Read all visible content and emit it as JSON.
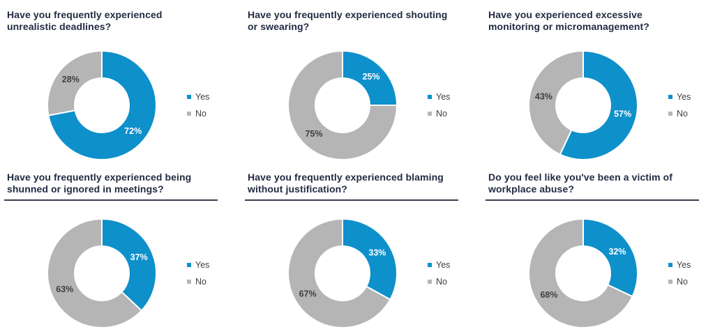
{
  "page": {
    "background_color": "#ffffff",
    "accent_color": "#0e90cb",
    "neutral_color": "#b5b5b5",
    "title_color": "#222b42"
  },
  "chart_data": [
    {
      "type": "pie",
      "subtype": "donut",
      "title": "Have you frequently experienced\nunrealistic deadlines?",
      "categories": [
        "Yes",
        "No"
      ],
      "values": [
        72,
        28
      ],
      "data_labels": [
        "72%",
        "28%"
      ],
      "colors": [
        "#0e90cb",
        "#b5b5b5"
      ],
      "label_colors": [
        "#ffffff",
        "#3f3f3f"
      ],
      "legend_position": "right",
      "title_underline": false,
      "start_angle_deg": 0,
      "direction": "clockwise"
    },
    {
      "type": "pie",
      "subtype": "donut",
      "title": "Have you frequently experienced shouting\nor swearing?",
      "categories": [
        "Yes",
        "No"
      ],
      "values": [
        25,
        75
      ],
      "data_labels": [
        "25%",
        "75%"
      ],
      "colors": [
        "#0e90cb",
        "#b5b5b5"
      ],
      "label_colors": [
        "#ffffff",
        "#3f3f3f"
      ],
      "legend_position": "right",
      "title_underline": false,
      "start_angle_deg": 0,
      "direction": "clockwise"
    },
    {
      "type": "pie",
      "subtype": "donut",
      "title": "Have you experienced excessive\nmonitoring or micromanagement?",
      "categories": [
        "Yes",
        "No"
      ],
      "values": [
        57,
        43
      ],
      "data_labels": [
        "57%",
        "43%"
      ],
      "colors": [
        "#0e90cb",
        "#b5b5b5"
      ],
      "label_colors": [
        "#ffffff",
        "#3f3f3f"
      ],
      "legend_position": "right",
      "title_underline": false,
      "start_angle_deg": 0,
      "direction": "clockwise"
    },
    {
      "type": "pie",
      "subtype": "donut",
      "title": "Have you frequently experienced being\nshunned or ignored in meetings?",
      "categories": [
        "Yes",
        "No"
      ],
      "values": [
        37,
        63
      ],
      "data_labels": [
        "37%",
        "63%"
      ],
      "colors": [
        "#0e90cb",
        "#b5b5b5"
      ],
      "label_colors": [
        "#ffffff",
        "#3f3f3f"
      ],
      "legend_position": "right",
      "title_underline": true,
      "start_angle_deg": 0,
      "direction": "clockwise"
    },
    {
      "type": "pie",
      "subtype": "donut",
      "title": "Have you frequently experienced blaming\nwithout justification?",
      "categories": [
        "Yes",
        "No"
      ],
      "values": [
        33,
        67
      ],
      "data_labels": [
        "33%",
        "67%"
      ],
      "colors": [
        "#0e90cb",
        "#b5b5b5"
      ],
      "label_colors": [
        "#ffffff",
        "#3f3f3f"
      ],
      "legend_position": "right",
      "title_underline": true,
      "start_angle_deg": 0,
      "direction": "clockwise"
    },
    {
      "type": "pie",
      "subtype": "donut",
      "title": "Do you feel like you've been a victim of\nworkplace abuse?",
      "categories": [
        "Yes",
        "No"
      ],
      "values": [
        32,
        68
      ],
      "data_labels": [
        "32%",
        "68%"
      ],
      "colors": [
        "#0e90cb",
        "#b5b5b5"
      ],
      "label_colors": [
        "#ffffff",
        "#3f3f3f"
      ],
      "legend_position": "right",
      "title_underline": true,
      "start_angle_deg": 0,
      "direction": "clockwise"
    }
  ]
}
